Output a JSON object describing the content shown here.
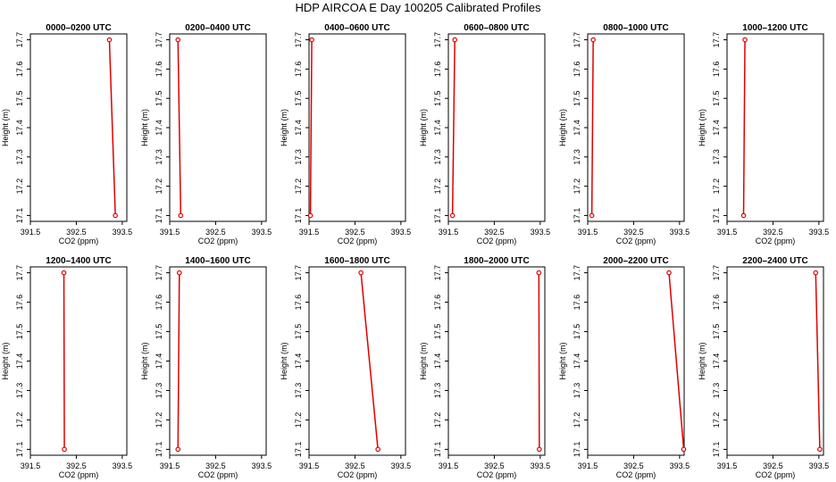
{
  "figure": {
    "title": "HDP AIRCOA E  Day 100205  Calibrated Profiles"
  },
  "colors": {
    "line": "#e00000",
    "marker": "#e00000",
    "frame": "#000000"
  },
  "chart_data": [
    {
      "type": "line",
      "title": "0000–0200 UTC",
      "xlabel": "CO2 (ppm)",
      "ylabel": "Height (m)",
      "xlim": [
        391.5,
        393.6
      ],
      "ylim": [
        17.08,
        17.72
      ],
      "xticks": [
        391.5,
        392.5,
        393.5
      ],
      "xticklabels": [
        "391.5",
        "392.5",
        "393.5"
      ],
      "yticks": [
        17.1,
        17.2,
        17.3,
        17.4,
        17.5,
        17.6,
        17.7
      ],
      "yticklabels": [
        "17.1",
        "17.2",
        "17.3",
        "17.4",
        "17.5",
        "17.6",
        "17.7"
      ],
      "series": [
        {
          "x": [
            393.35,
            393.22
          ],
          "y": [
            17.1,
            17.7
          ]
        }
      ]
    },
    {
      "type": "line",
      "title": "0200–0400 UTC",
      "xlabel": "CO2 (ppm)",
      "ylabel": "Height (m)",
      "xlim": [
        391.5,
        393.6
      ],
      "ylim": [
        17.08,
        17.72
      ],
      "xticks": [
        391.5,
        392.5,
        393.5
      ],
      "xticklabels": [
        "391.5",
        "392.5",
        "393.5"
      ],
      "yticks": [
        17.1,
        17.2,
        17.3,
        17.4,
        17.5,
        17.6,
        17.7
      ],
      "yticklabels": [
        "17.1",
        "17.2",
        "17.3",
        "17.4",
        "17.5",
        "17.6",
        "17.7"
      ],
      "series": [
        {
          "x": [
            391.74,
            391.68
          ],
          "y": [
            17.1,
            17.7
          ]
        }
      ]
    },
    {
      "type": "line",
      "title": "0400–0600 UTC",
      "xlabel": "CO2 (ppm)",
      "ylabel": "Height (m)",
      "xlim": [
        391.5,
        393.6
      ],
      "ylim": [
        17.08,
        17.72
      ],
      "xticks": [
        391.5,
        392.5,
        393.5
      ],
      "xticklabels": [
        "391.5",
        "392.5",
        "393.5"
      ],
      "yticks": [
        17.1,
        17.2,
        17.3,
        17.4,
        17.5,
        17.6,
        17.7
      ],
      "yticklabels": [
        "17.1",
        "17.2",
        "17.3",
        "17.4",
        "17.5",
        "17.6",
        "17.7"
      ],
      "series": [
        {
          "x": [
            391.53,
            391.56
          ],
          "y": [
            17.1,
            17.7
          ]
        }
      ]
    },
    {
      "type": "line",
      "title": "0600–0800 UTC",
      "xlabel": "CO2 (ppm)",
      "ylabel": "Height (m)",
      "xlim": [
        391.5,
        393.6
      ],
      "ylim": [
        17.08,
        17.72
      ],
      "xticks": [
        391.5,
        392.5,
        393.5
      ],
      "xticklabels": [
        "391.5",
        "392.5",
        "393.5"
      ],
      "yticks": [
        17.1,
        17.2,
        17.3,
        17.4,
        17.5,
        17.6,
        17.7
      ],
      "yticklabels": [
        "17.1",
        "17.2",
        "17.3",
        "17.4",
        "17.5",
        "17.6",
        "17.7"
      ],
      "series": [
        {
          "x": [
            391.59,
            391.64
          ],
          "y": [
            17.1,
            17.7
          ]
        }
      ]
    },
    {
      "type": "line",
      "title": "0800–1000 UTC",
      "xlabel": "CO2 (ppm)",
      "ylabel": "Height (m)",
      "xlim": [
        391.5,
        393.6
      ],
      "ylim": [
        17.08,
        17.72
      ],
      "xticks": [
        391.5,
        392.5,
        393.5
      ],
      "xticklabels": [
        "391.5",
        "392.5",
        "393.5"
      ],
      "yticks": [
        17.1,
        17.2,
        17.3,
        17.4,
        17.5,
        17.6,
        17.7
      ],
      "yticklabels": [
        "17.1",
        "17.2",
        "17.3",
        "17.4",
        "17.5",
        "17.6",
        "17.7"
      ],
      "series": [
        {
          "x": [
            391.59,
            391.62
          ],
          "y": [
            17.1,
            17.7
          ]
        }
      ]
    },
    {
      "type": "line",
      "title": "1000–1200 UTC",
      "xlabel": "CO2 (ppm)",
      "ylabel": "Height (m)",
      "xlim": [
        391.5,
        393.6
      ],
      "ylim": [
        17.08,
        17.72
      ],
      "xticks": [
        391.5,
        392.5,
        393.5
      ],
      "xticklabels": [
        "391.5",
        "392.5",
        "393.5"
      ],
      "yticks": [
        17.1,
        17.2,
        17.3,
        17.4,
        17.5,
        17.6,
        17.7
      ],
      "yticklabels": [
        "17.1",
        "17.2",
        "17.3",
        "17.4",
        "17.5",
        "17.6",
        "17.7"
      ],
      "series": [
        {
          "x": [
            391.86,
            391.89
          ],
          "y": [
            17.1,
            17.7
          ]
        }
      ]
    },
    {
      "type": "line",
      "title": "1200–1400 UTC",
      "xlabel": "CO2 (ppm)",
      "ylabel": "Height (m)",
      "xlim": [
        391.5,
        393.6
      ],
      "ylim": [
        17.08,
        17.72
      ],
      "xticks": [
        391.5,
        392.5,
        393.5
      ],
      "xticklabels": [
        "391.5",
        "392.5",
        "393.5"
      ],
      "yticks": [
        17.1,
        17.2,
        17.3,
        17.4,
        17.5,
        17.6,
        17.7
      ],
      "yticklabels": [
        "17.1",
        "17.2",
        "17.3",
        "17.4",
        "17.5",
        "17.6",
        "17.7"
      ],
      "series": [
        {
          "x": [
            392.24,
            392.23
          ],
          "y": [
            17.1,
            17.7
          ]
        }
      ]
    },
    {
      "type": "line",
      "title": "1400–1600 UTC",
      "xlabel": "CO2 (ppm)",
      "ylabel": "Height (m)",
      "xlim": [
        391.5,
        393.6
      ],
      "ylim": [
        17.08,
        17.72
      ],
      "xticks": [
        391.5,
        392.5,
        393.5
      ],
      "xticklabels": [
        "391.5",
        "392.5",
        "393.5"
      ],
      "yticks": [
        17.1,
        17.2,
        17.3,
        17.4,
        17.5,
        17.6,
        17.7
      ],
      "yticklabels": [
        "17.1",
        "17.2",
        "17.3",
        "17.4",
        "17.5",
        "17.6",
        "17.7"
      ],
      "series": [
        {
          "x": [
            391.68,
            391.71
          ],
          "y": [
            17.1,
            17.7
          ]
        }
      ]
    },
    {
      "type": "line",
      "title": "1600–1800 UTC",
      "xlabel": "CO2 (ppm)",
      "ylabel": "Height (m)",
      "xlim": [
        391.5,
        393.6
      ],
      "ylim": [
        17.08,
        17.72
      ],
      "xticks": [
        391.5,
        392.5,
        393.5
      ],
      "xticklabels": [
        "391.5",
        "392.5",
        "393.5"
      ],
      "yticks": [
        17.1,
        17.2,
        17.3,
        17.4,
        17.5,
        17.6,
        17.7
      ],
      "yticklabels": [
        "17.1",
        "17.2",
        "17.3",
        "17.4",
        "17.5",
        "17.6",
        "17.7"
      ],
      "series": [
        {
          "x": [
            393.0,
            392.63
          ],
          "y": [
            17.1,
            17.7
          ]
        }
      ]
    },
    {
      "type": "line",
      "title": "1800–2000 UTC",
      "xlabel": "CO2 (ppm)",
      "ylabel": "Height (m)",
      "xlim": [
        391.5,
        393.6
      ],
      "ylim": [
        17.08,
        17.72
      ],
      "xticks": [
        391.5,
        392.5,
        393.5
      ],
      "xticklabels": [
        "391.5",
        "392.5",
        "393.5"
      ],
      "yticks": [
        17.1,
        17.2,
        17.3,
        17.4,
        17.5,
        17.6,
        17.7
      ],
      "yticklabels": [
        "17.1",
        "17.2",
        "17.3",
        "17.4",
        "17.5",
        "17.6",
        "17.7"
      ],
      "series": [
        {
          "x": [
            393.48,
            393.47
          ],
          "y": [
            17.1,
            17.7
          ]
        }
      ]
    },
    {
      "type": "line",
      "title": "2000–2200 UTC",
      "xlabel": "CO2 (ppm)",
      "ylabel": "Height (m)",
      "xlim": [
        391.5,
        393.6
      ],
      "ylim": [
        17.08,
        17.72
      ],
      "xticks": [
        391.5,
        392.5,
        393.5
      ],
      "xticklabels": [
        "391.5",
        "392.5",
        "393.5"
      ],
      "yticks": [
        17.1,
        17.2,
        17.3,
        17.4,
        17.5,
        17.6,
        17.7
      ],
      "yticklabels": [
        "17.1",
        "17.2",
        "17.3",
        "17.4",
        "17.5",
        "17.6",
        "17.7"
      ],
      "series": [
        {
          "x": [
            393.59,
            393.27
          ],
          "y": [
            17.1,
            17.7
          ]
        }
      ]
    },
    {
      "type": "line",
      "title": "2200–2400 UTC",
      "xlabel": "CO2 (ppm)",
      "ylabel": "Height (m)",
      "xlim": [
        391.5,
        393.6
      ],
      "ylim": [
        17.08,
        17.72
      ],
      "xticks": [
        391.5,
        392.5,
        393.5
      ],
      "xticklabels": [
        "391.5",
        "392.5",
        "393.5"
      ],
      "yticks": [
        17.1,
        17.2,
        17.3,
        17.4,
        17.5,
        17.6,
        17.7
      ],
      "yticklabels": [
        "17.1",
        "17.2",
        "17.3",
        "17.4",
        "17.5",
        "17.6",
        "17.7"
      ],
      "series": [
        {
          "x": [
            393.52,
            393.43
          ],
          "y": [
            17.1,
            17.7
          ]
        }
      ]
    }
  ]
}
